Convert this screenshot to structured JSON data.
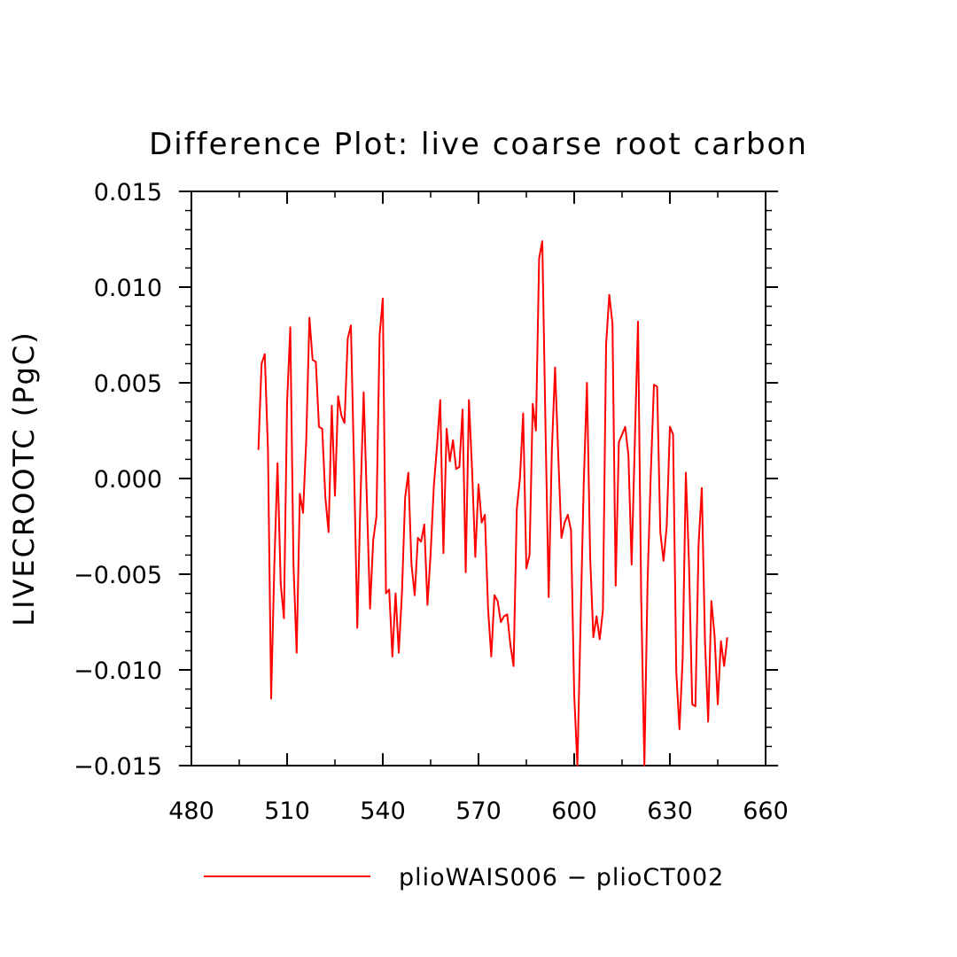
{
  "chart_data": {
    "type": "line",
    "title": "Difference Plot: live coarse root carbon",
    "xlabel": "",
    "ylabel": "LIVECROOTC  (PgC)",
    "xlim": [
      480,
      660
    ],
    "ylim": [
      -0.015,
      0.015
    ],
    "x_ticks": [
      480,
      510,
      540,
      570,
      600,
      630,
      660
    ],
    "x_tick_labels": [
      "480",
      "510",
      "540",
      "570",
      "600",
      "630",
      "660"
    ],
    "y_ticks": [
      -0.015,
      -0.01,
      -0.005,
      0.0,
      0.005,
      0.01,
      0.015
    ],
    "y_tick_labels": [
      "−0.015",
      "−0.010",
      "−0.005",
      "0.000",
      "0.005",
      "0.010",
      "0.015"
    ],
    "grid": false,
    "legend_position": "bottom",
    "series": [
      {
        "name": "plioWAIS006 − plioCT002",
        "color": "#ff0000",
        "x_start": 501,
        "x_step": 1,
        "values": [
          0.0015,
          0.006,
          0.0065,
          0.0015,
          -0.0115,
          -0.0045,
          0.0008,
          -0.0055,
          -0.0073,
          0.004,
          0.0079,
          -0.0045,
          -0.0091,
          -0.0008,
          -0.0018,
          0.002,
          0.0084,
          0.0062,
          0.0061,
          0.0027,
          0.0026,
          -0.001,
          -0.0028,
          0.0038,
          -0.0009,
          0.0043,
          0.0033,
          0.0029,
          0.0073,
          0.008,
          0.0005,
          -0.0078,
          -0.0011,
          0.0045,
          -0.0011,
          -0.0068,
          -0.0032,
          -0.002,
          0.0075,
          0.0094,
          -0.006,
          -0.0058,
          -0.0093,
          -0.006,
          -0.0091,
          -0.006,
          -0.001,
          0.0003,
          -0.0045,
          -0.0061,
          -0.0031,
          -0.0033,
          -0.0024,
          -0.0066,
          -0.0039,
          -0.0004,
          0.0017,
          0.0041,
          -0.0039,
          0.0026,
          0.0009,
          0.002,
          0.0005,
          0.0006,
          0.0036,
          -0.0049,
          0.0041,
          0.0004,
          -0.0041,
          -0.0003,
          -0.0023,
          -0.0019,
          -0.0068,
          -0.0093,
          -0.0061,
          -0.0064,
          -0.0075,
          -0.0072,
          -0.0071,
          -0.0087,
          -0.0098,
          -0.0016,
          0.0,
          0.0034,
          -0.0047,
          -0.004,
          0.0039,
          0.0025,
          0.0115,
          0.0124,
          0.0027,
          -0.0062,
          0.0015,
          0.0058,
          0.0012,
          -0.0031,
          -0.0023,
          -0.0019,
          -0.0027,
          -0.0113,
          -0.015,
          -0.0075,
          -0.0002,
          0.005,
          -0.0041,
          -0.0083,
          -0.0072,
          -0.0084,
          -0.0069,
          0.007,
          0.0096,
          0.0081,
          -0.0056,
          0.0019,
          0.0023,
          0.0027,
          0.0012,
          -0.0045,
          0.0019,
          0.0082,
          -0.0062,
          -0.015,
          -0.0054,
          0.0002,
          0.0049,
          0.0048,
          -0.0028,
          -0.0043,
          -0.0025,
          0.0027,
          0.0023,
          -0.0101,
          -0.0131,
          -0.0094,
          0.0003,
          -0.0045,
          -0.0118,
          -0.0119,
          -0.0034,
          -0.0005,
          -0.0085,
          -0.0127,
          -0.0064,
          -0.0082,
          -0.0118,
          -0.0085,
          -0.0098,
          -0.0083
        ]
      }
    ]
  }
}
